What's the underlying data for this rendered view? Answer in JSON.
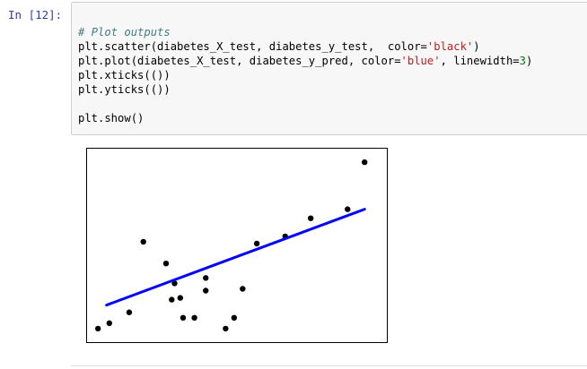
{
  "cell": {
    "prompt": "In [12]:",
    "code_lines": [
      {
        "comment": "# Plot outputs"
      },
      {
        "segments": [
          {
            "t": "plt.scatter(diabetes_X_test, diabetes_y_test,  color=",
            "c": ""
          },
          {
            "t": "'black'",
            "c": "st"
          },
          {
            "t": ")",
            "c": ""
          }
        ]
      },
      {
        "segments": [
          {
            "t": "plt.plot(diabetes_X_test, diabetes_y_pred, color=",
            "c": ""
          },
          {
            "t": "'blue'",
            "c": "st"
          },
          {
            "t": ", linewidth=",
            "c": ""
          },
          {
            "t": "3",
            "c": "nm"
          },
          {
            "t": ")",
            "c": ""
          }
        ]
      },
      {
        "segments": [
          {
            "t": "plt.xticks(())",
            "c": ""
          }
        ]
      },
      {
        "segments": [
          {
            "t": "plt.yticks(())",
            "c": ""
          }
        ]
      },
      {
        "segments": [
          {
            "t": "",
            "c": ""
          }
        ]
      },
      {
        "segments": [
          {
            "t": "plt.show()",
            "c": ""
          }
        ]
      }
    ]
  },
  "colors": {
    "scatter": "#000000",
    "line": "#0000ff",
    "prompt": "#303f9f",
    "cell_background": "#f7f7f7",
    "cell_border": "#cfcfcf"
  },
  "chart_data": [
    {
      "type": "scatter",
      "name": "",
      "xlim": [
        0,
        100
      ],
      "ylim": [
        0,
        100
      ],
      "grid": false,
      "x": [
        1,
        5,
        12,
        17,
        25,
        27,
        28,
        30,
        31,
        35,
        39,
        39,
        46,
        49,
        52,
        57,
        67,
        76,
        89,
        95
      ],
      "y": [
        4,
        7,
        13,
        52,
        40,
        20,
        29,
        21,
        10,
        10,
        32,
        25,
        4,
        10,
        26,
        51,
        55,
        65,
        70,
        96
      ],
      "color": "#000000"
    },
    {
      "type": "line",
      "name": "",
      "x": [
        4,
        95
      ],
      "y": [
        17,
        70
      ],
      "color": "#0000ff",
      "linewidth": 3
    }
  ]
}
